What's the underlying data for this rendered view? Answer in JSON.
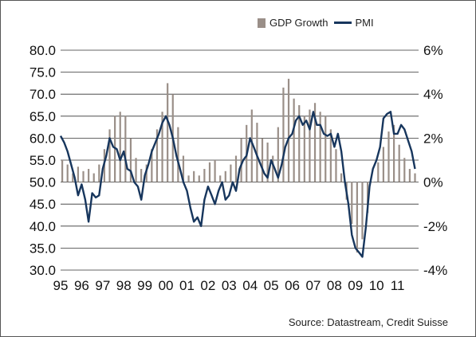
{
  "chart_data": {
    "type": "bar+line",
    "legend_placement": "top-right",
    "grid": true,
    "colors": {
      "gdp": "#9a8f88",
      "pmi": "#17365d",
      "grid": "#333333"
    },
    "x_labels": [
      "95",
      "96",
      "97",
      "98",
      "99",
      "00",
      "01",
      "02",
      "03",
      "04",
      "05",
      "06",
      "07",
      "08",
      "09",
      "10",
      "11"
    ],
    "x_range": [
      1995.0,
      2012.0
    ],
    "y_left": {
      "ticks": [
        "80.0",
        "75.0",
        "70.0",
        "65.0",
        "60.0",
        "55.0",
        "50.0",
        "45.0",
        "40.0",
        "35.0",
        "30.0"
      ],
      "range": [
        30,
        80
      ]
    },
    "y_right": {
      "ticks": [
        "6%",
        "4%",
        "2%",
        "0%",
        "-2%",
        "-4%"
      ],
      "range": [
        -4,
        6
      ],
      "unit": "%"
    },
    "series": [
      {
        "name": "GDP Growth",
        "type": "bar",
        "axis": "right",
        "x": [
          1995.0,
          1995.25,
          1995.5,
          1995.75,
          1996.0,
          1996.25,
          1996.5,
          1996.75,
          1997.0,
          1997.25,
          1997.5,
          1997.75,
          1998.0,
          1998.25,
          1998.5,
          1998.75,
          1999.0,
          1999.25,
          1999.5,
          1999.75,
          2000.0,
          2000.25,
          2000.5,
          2000.75,
          2001.0,
          2001.25,
          2001.5,
          2001.75,
          2002.0,
          2002.25,
          2002.5,
          2002.75,
          2003.0,
          2003.25,
          2003.5,
          2003.75,
          2004.0,
          2004.25,
          2004.5,
          2004.75,
          2005.0,
          2005.25,
          2005.5,
          2005.75,
          2006.0,
          2006.25,
          2006.5,
          2006.75,
          2007.0,
          2007.25,
          2007.5,
          2007.75,
          2008.0,
          2008.25,
          2008.5,
          2008.75,
          2009.0,
          2009.25,
          2009.5,
          2009.75,
          2010.0,
          2010.25,
          2010.5,
          2010.75,
          2011.0,
          2011.25,
          2011.5,
          2011.75
        ],
        "values": [
          1.0,
          0.8,
          0.4,
          0.7,
          0.5,
          0.6,
          0.4,
          0.8,
          1.5,
          2.4,
          3.0,
          3.2,
          3.0,
          2.0,
          1.1,
          0.6,
          0.8,
          1.5,
          2.4,
          3.2,
          4.5,
          4.0,
          2.5,
          1.2,
          0.3,
          0.5,
          0.3,
          0.6,
          0.9,
          1.0,
          0.3,
          0.5,
          0.8,
          1.2,
          2.0,
          2.6,
          3.3,
          2.7,
          2.0,
          1.8,
          1.2,
          2.5,
          4.3,
          4.7,
          3.8,
          3.5,
          3.0,
          3.3,
          3.6,
          3.2,
          3.0,
          2.4,
          1.5,
          0.4,
          -0.8,
          -1.9,
          -3.2,
          -2.6,
          -1.4,
          0.0,
          0.9,
          1.6,
          2.3,
          2.6,
          1.7,
          1.1,
          0.6,
          0.4
        ]
      },
      {
        "name": "PMI",
        "type": "line",
        "axis": "left",
        "x": [
          1995.0,
          1995.17,
          1995.33,
          1995.5,
          1995.67,
          1995.83,
          1996.0,
          1996.17,
          1996.33,
          1996.5,
          1996.67,
          1996.83,
          1997.0,
          1997.17,
          1997.33,
          1997.5,
          1997.67,
          1997.83,
          1998.0,
          1998.17,
          1998.33,
          1998.5,
          1998.67,
          1998.83,
          1999.0,
          1999.17,
          1999.33,
          1999.5,
          1999.67,
          1999.83,
          2000.0,
          2000.17,
          2000.33,
          2000.5,
          2000.67,
          2000.83,
          2001.0,
          2001.17,
          2001.33,
          2001.5,
          2001.67,
          2001.83,
          2002.0,
          2002.17,
          2002.33,
          2002.5,
          2002.67,
          2002.83,
          2003.0,
          2003.17,
          2003.33,
          2003.5,
          2003.67,
          2003.83,
          2004.0,
          2004.17,
          2004.33,
          2004.5,
          2004.67,
          2004.83,
          2005.0,
          2005.17,
          2005.33,
          2005.5,
          2005.67,
          2005.83,
          2006.0,
          2006.17,
          2006.33,
          2006.5,
          2006.67,
          2006.83,
          2007.0,
          2007.17,
          2007.33,
          2007.5,
          2007.67,
          2007.83,
          2008.0,
          2008.17,
          2008.33,
          2008.5,
          2008.67,
          2008.83,
          2009.0,
          2009.17,
          2009.33,
          2009.5,
          2009.67,
          2009.83,
          2010.0,
          2010.17,
          2010.33,
          2010.5,
          2010.67,
          2010.83,
          2011.0,
          2011.17,
          2011.33,
          2011.5,
          2011.67,
          2011.83
        ],
        "values": [
          60.5,
          59.0,
          57.0,
          54.0,
          51.0,
          47.0,
          49.5,
          46.0,
          41.0,
          47.5,
          46.5,
          47.0,
          53.0,
          56.0,
          60.0,
          58.0,
          57.5,
          55.0,
          57.0,
          53.0,
          52.5,
          50.0,
          49.0,
          46.0,
          51.5,
          54.0,
          57.0,
          59.0,
          61.0,
          63.5,
          65.0,
          63.0,
          60.0,
          56.0,
          53.0,
          50.0,
          48.0,
          44.0,
          41.0,
          42.0,
          40.0,
          46.0,
          49.0,
          47.0,
          45.0,
          48.0,
          50.0,
          46.0,
          47.0,
          50.0,
          48.0,
          53.0,
          55.0,
          56.0,
          60.0,
          58.0,
          56.0,
          54.0,
          52.0,
          51.0,
          55.0,
          53.0,
          51.0,
          54.0,
          58.0,
          60.0,
          61.0,
          64.0,
          65.0,
          63.0,
          64.0,
          62.0,
          66.0,
          63.0,
          63.0,
          61.0,
          60.5,
          61.0,
          58.0,
          61.0,
          57.0,
          50.0,
          45.0,
          38.0,
          35.0,
          34.0,
          33.0,
          40.0,
          49.0,
          53.0,
          55.0,
          58.0,
          64.5,
          65.5,
          66.0,
          61.0,
          61.0,
          63.0,
          62.0,
          59.5,
          57.0,
          53.0
        ]
      }
    ],
    "source": "Source: Datastream, Credit Suisse"
  }
}
